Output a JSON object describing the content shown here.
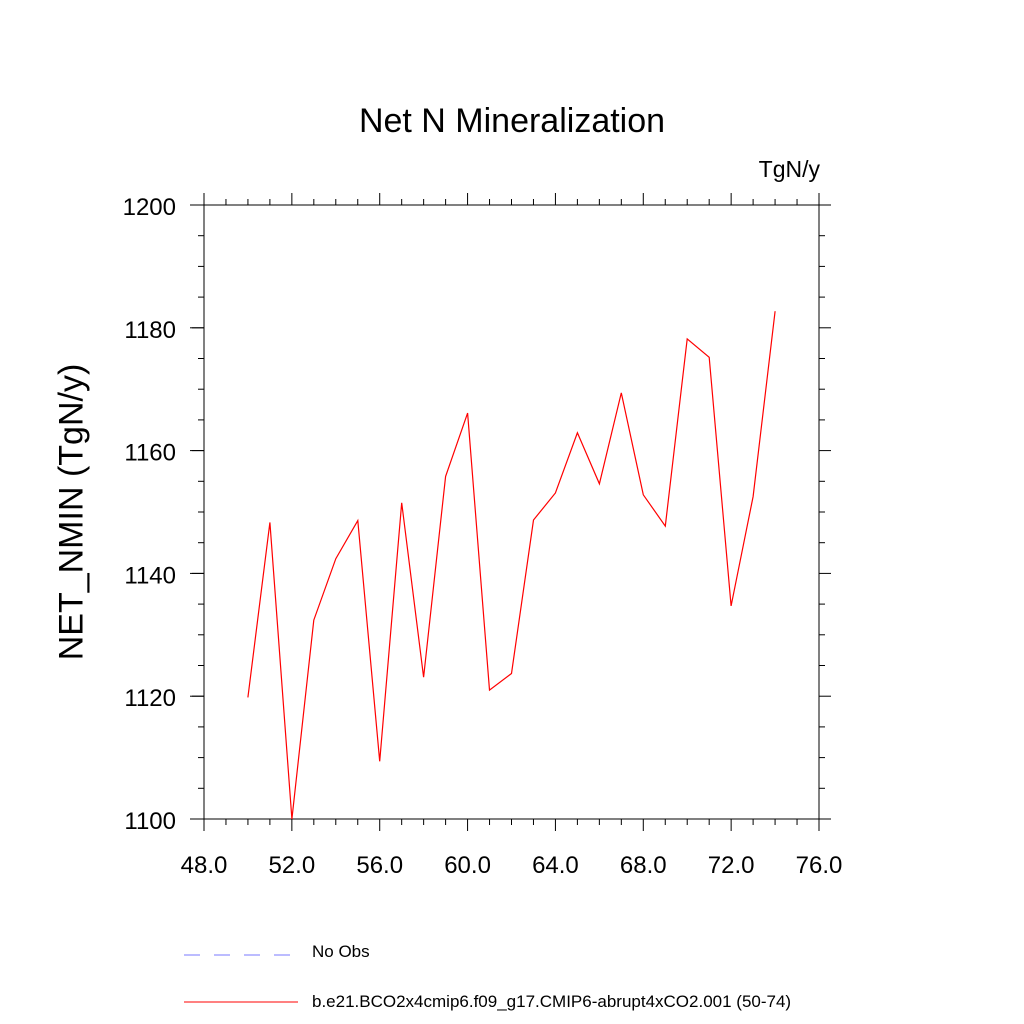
{
  "chart_data": {
    "type": "line",
    "title": "Net N Mineralization",
    "units_label": "TgN/y",
    "ylabel": "NET_NMIN  (TgN/y)",
    "xlabel": "",
    "xlim": [
      48,
      76
    ],
    "ylim": [
      1100,
      1200
    ],
    "x_ticks": [
      48,
      52,
      56,
      60,
      64,
      68,
      72,
      76
    ],
    "x_tick_labels": [
      "48.0",
      "52.0",
      "56.0",
      "60.0",
      "64.0",
      "68.0",
      "72.0",
      "76.0"
    ],
    "x_minor_step": 1,
    "y_ticks": [
      1100,
      1120,
      1140,
      1160,
      1180,
      1200
    ],
    "y_tick_labels": [
      "1100",
      "1120",
      "1140",
      "1160",
      "1180",
      "1200"
    ],
    "y_minor_step": 5,
    "grid": false,
    "series": [
      {
        "name": "b.e21.BCO2x4cmip6.f09_g17.CMIP6-abrupt4xCO2.001 (50-74)",
        "color": "#ff0000",
        "x": [
          50,
          51,
          52,
          53,
          54,
          55,
          56,
          57,
          58,
          59,
          60,
          61,
          62,
          63,
          64,
          65,
          66,
          67,
          68,
          69,
          70,
          71,
          72,
          73,
          74
        ],
        "values": [
          1119.8,
          1148.3,
          1100.0,
          1132.4,
          1142.4,
          1148.6,
          1109.4,
          1151.5,
          1123.1,
          1155.8,
          1166.1,
          1121.0,
          1123.7,
          1148.7,
          1153.1,
          1162.9,
          1154.6,
          1169.4,
          1152.8,
          1147.7,
          1178.2,
          1175.2,
          1134.7,
          1152.5,
          1182.7
        ]
      }
    ],
    "legend": [
      {
        "label": "No Obs",
        "style": "dashed",
        "color": "#7a7aff"
      },
      {
        "label": "b.e21.BCO2x4cmip6.f09_g17.CMIP6-abrupt4xCO2.001 (50-74)",
        "style": "solid",
        "color": "#ff0000"
      }
    ],
    "legend_placement": "bottom"
  }
}
